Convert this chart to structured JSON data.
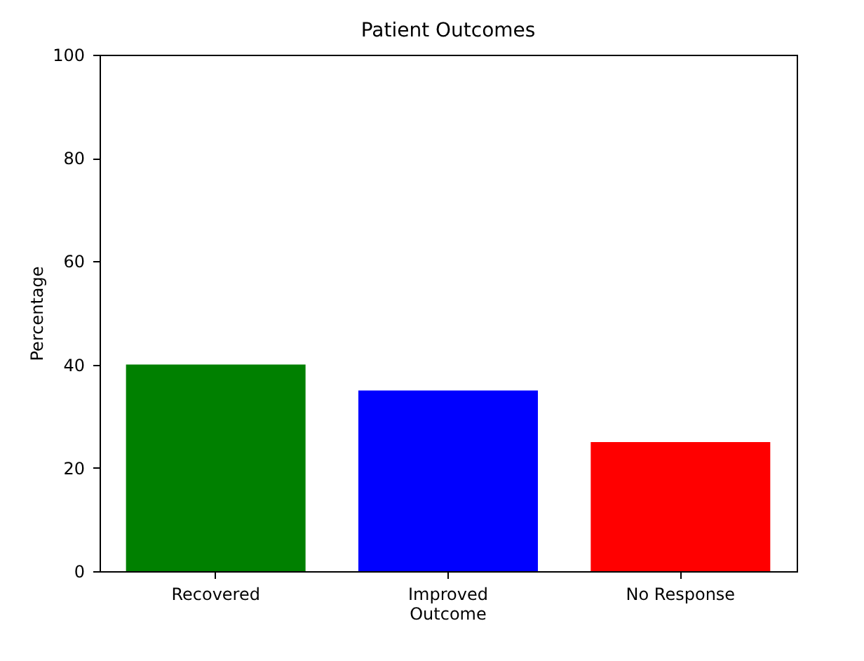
{
  "chart_data": {
    "type": "bar",
    "title": "Patient Outcomes",
    "ylabel": "Percentage",
    "categories": [
      "Recovered",
      "Improved Outcome",
      "No Response"
    ],
    "values": [
      40,
      35,
      25
    ],
    "colors": [
      "#008000",
      "#0000ff",
      "#ff0000"
    ],
    "ylim": [
      0,
      100
    ],
    "yticks": [
      0,
      20,
      40,
      60,
      80,
      100
    ],
    "grid": false
  }
}
